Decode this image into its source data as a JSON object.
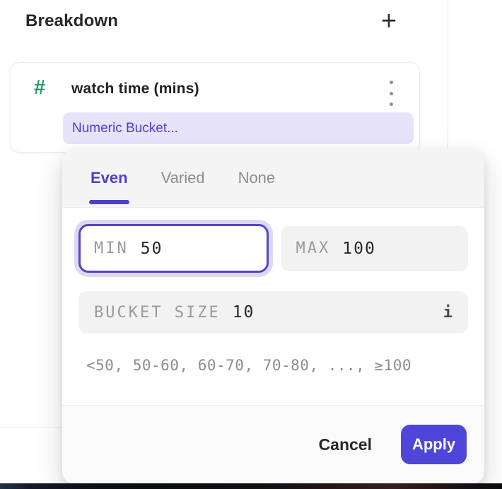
{
  "panel": {
    "title": "Breakdown"
  },
  "icons": {
    "add": "+",
    "number_type": "#",
    "kebab_menu": "vertical-dots",
    "info": "i"
  },
  "property_card": {
    "name": "watch time (mins)",
    "bucket_type": "Numeric Bucket..."
  },
  "bucket_popover": {
    "tabs": [
      {
        "label": "Even",
        "active": true
      },
      {
        "label": "Varied",
        "active": false
      },
      {
        "label": "None",
        "active": false
      }
    ],
    "min": {
      "label": "MIN",
      "value": "50"
    },
    "max": {
      "label": "MAX",
      "value": "100"
    },
    "bucket_size": {
      "label": "BUCKET SIZE",
      "value": "10"
    },
    "preview": "<50, 50-60, 60-70, 70-80, ..., ≥100",
    "cancel_label": "Cancel",
    "apply_label": "Apply"
  },
  "colors": {
    "accent": "#4c40d0",
    "apply_button": "#4f45d8",
    "number_icon_green": "#2c9a6a",
    "pill_bg": "#e6e3fa",
    "pill_text": "#4a3fd0",
    "field_bg": "#f2f2f3",
    "focus_ring": "#dcd8f4"
  }
}
